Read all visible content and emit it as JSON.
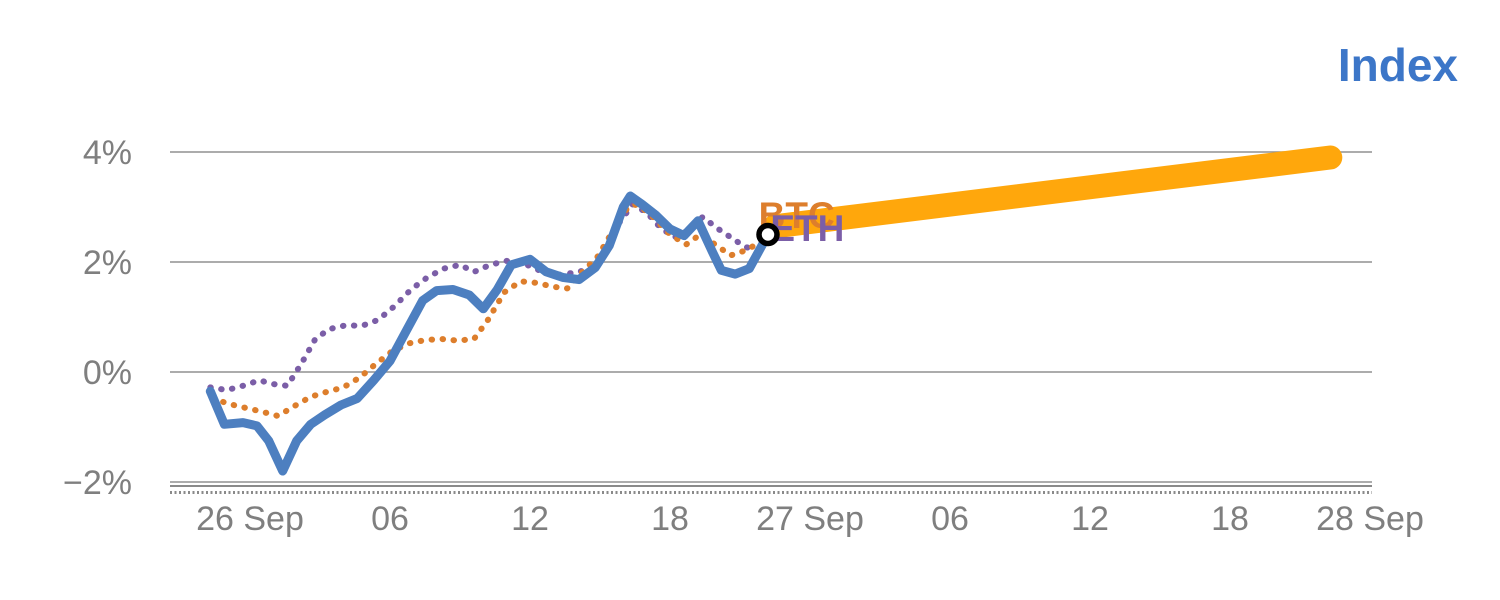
{
  "title": "Index",
  "colors": {
    "title": "#3c76c8",
    "axis_text": "#7f7f7f",
    "grid": "#909090",
    "axis_line": "#8a8a8a",
    "marker_ring": "#000000",
    "marker_fill": "#ffffff"
  },
  "chart_data": {
    "type": "line",
    "title": "Index",
    "x_axis": {
      "unit": "hours from 26 Sep 00:00",
      "range": [
        -2.5,
        48.5
      ],
      "ticks": [
        {
          "t": 0,
          "label": "26 Sep"
        },
        {
          "t": 6,
          "label": "06"
        },
        {
          "t": 12,
          "label": "12"
        },
        {
          "t": 18,
          "label": "18"
        },
        {
          "t": 24,
          "label": "27 Sep"
        },
        {
          "t": 30,
          "label": "06"
        },
        {
          "t": 36,
          "label": "12"
        },
        {
          "t": 42,
          "label": "18"
        },
        {
          "t": 48,
          "label": "28 Sep"
        }
      ]
    },
    "y_axis": {
      "unit": "percent change",
      "range": [
        -2.3,
        4.6
      ],
      "grid": true,
      "ticks": [
        {
          "v": 4,
          "label": "4%"
        },
        {
          "v": 2,
          "label": "2%"
        },
        {
          "v": 0,
          "label": "0%"
        },
        {
          "v": -2,
          "label": "−2%"
        }
      ]
    },
    "series": [
      {
        "name": "eth",
        "color": "#7b5ea7",
        "style": "dotted",
        "width": 6,
        "points": [
          [
            -1.7,
            -0.28
          ],
          [
            -1.0,
            -0.33
          ],
          [
            -0.3,
            -0.25
          ],
          [
            0.4,
            -0.15
          ],
          [
            1.0,
            -0.22
          ],
          [
            1.6,
            -0.25
          ],
          [
            2.2,
            0.15
          ],
          [
            2.8,
            0.6
          ],
          [
            3.4,
            0.78
          ],
          [
            4.1,
            0.85
          ],
          [
            4.8,
            0.84
          ],
          [
            5.5,
            0.95
          ],
          [
            6.2,
            1.2
          ],
          [
            6.9,
            1.5
          ],
          [
            7.6,
            1.72
          ],
          [
            8.3,
            1.88
          ],
          [
            9.0,
            1.95
          ],
          [
            9.6,
            1.82
          ],
          [
            10.3,
            1.95
          ],
          [
            11.0,
            2.02
          ],
          [
            11.7,
            1.98
          ],
          [
            12.4,
            1.85
          ],
          [
            13.1,
            1.76
          ],
          [
            13.8,
            1.8
          ],
          [
            14.5,
            1.86
          ],
          [
            15.2,
            2.1
          ],
          [
            15.8,
            2.7
          ],
          [
            16.4,
            3.05
          ],
          [
            17.0,
            2.9
          ],
          [
            17.6,
            2.62
          ],
          [
            18.2,
            2.45
          ],
          [
            18.8,
            2.58
          ],
          [
            19.4,
            2.82
          ],
          [
            20.0,
            2.62
          ],
          [
            20.6,
            2.45
          ],
          [
            21.2,
            2.28
          ],
          [
            21.9,
            2.18
          ]
        ]
      },
      {
        "name": "btc",
        "color": "#dd7e2c",
        "style": "dotted",
        "width": 6,
        "points": [
          [
            -1.6,
            -0.48
          ],
          [
            -0.9,
            -0.58
          ],
          [
            -0.2,
            -0.65
          ],
          [
            0.5,
            -0.72
          ],
          [
            1.2,
            -0.8
          ],
          [
            1.9,
            -0.62
          ],
          [
            2.6,
            -0.45
          ],
          [
            3.3,
            -0.36
          ],
          [
            4.0,
            -0.28
          ],
          [
            4.7,
            -0.1
          ],
          [
            5.4,
            0.15
          ],
          [
            6.1,
            0.38
          ],
          [
            6.8,
            0.52
          ],
          [
            7.5,
            0.58
          ],
          [
            8.2,
            0.6
          ],
          [
            8.9,
            0.57
          ],
          [
            9.6,
            0.6
          ],
          [
            10.2,
            0.95
          ],
          [
            10.9,
            1.45
          ],
          [
            11.6,
            1.65
          ],
          [
            12.3,
            1.62
          ],
          [
            13.0,
            1.55
          ],
          [
            13.6,
            1.52
          ],
          [
            14.2,
            1.8
          ],
          [
            14.9,
            2.1
          ],
          [
            15.6,
            2.6
          ],
          [
            16.2,
            3.0
          ],
          [
            16.6,
            3.05
          ],
          [
            17.2,
            2.85
          ],
          [
            18.0,
            2.5
          ],
          [
            18.7,
            2.32
          ],
          [
            19.3,
            2.5
          ],
          [
            20.0,
            2.3
          ],
          [
            20.6,
            2.12
          ],
          [
            21.3,
            2.22
          ],
          [
            22.0,
            2.4
          ]
        ]
      },
      {
        "name": "index",
        "color": "#4d7fc0",
        "style": "solid",
        "width": 9,
        "points": [
          [
            -1.7,
            -0.35
          ],
          [
            -1.1,
            -0.95
          ],
          [
            -0.3,
            -0.92
          ],
          [
            0.3,
            -0.98
          ],
          [
            0.8,
            -1.25
          ],
          [
            1.4,
            -1.8
          ],
          [
            2.0,
            -1.25
          ],
          [
            2.6,
            -0.95
          ],
          [
            3.2,
            -0.78
          ],
          [
            3.9,
            -0.6
          ],
          [
            4.6,
            -0.48
          ],
          [
            5.3,
            -0.15
          ],
          [
            6.0,
            0.2
          ],
          [
            6.7,
            0.75
          ],
          [
            7.4,
            1.3
          ],
          [
            8.0,
            1.48
          ],
          [
            8.7,
            1.5
          ],
          [
            9.4,
            1.4
          ],
          [
            10.0,
            1.15
          ],
          [
            10.6,
            1.5
          ],
          [
            11.2,
            1.95
          ],
          [
            12.0,
            2.05
          ],
          [
            12.7,
            1.82
          ],
          [
            13.4,
            1.72
          ],
          [
            14.1,
            1.68
          ],
          [
            14.8,
            1.9
          ],
          [
            15.4,
            2.3
          ],
          [
            16.0,
            3.0
          ],
          [
            16.3,
            3.2
          ],
          [
            16.8,
            3.05
          ],
          [
            17.4,
            2.85
          ],
          [
            18.0,
            2.6
          ],
          [
            18.6,
            2.48
          ],
          [
            19.2,
            2.75
          ],
          [
            19.8,
            2.2
          ],
          [
            20.2,
            1.85
          ],
          [
            20.8,
            1.78
          ],
          [
            21.4,
            1.88
          ],
          [
            22.2,
            2.5
          ]
        ]
      },
      {
        "name": "forecast",
        "color": "#ffa70c",
        "style": "solid",
        "width": 24,
        "points": [
          [
            22.5,
            2.65
          ],
          [
            46.3,
            3.9
          ]
        ]
      }
    ],
    "marker": {
      "t": 22.2,
      "value": 2.5
    },
    "annotations": [
      {
        "text": "BTC",
        "color": "#dd7e2c",
        "t": 21.8,
        "value": 2.62
      },
      {
        "text": "ETH",
        "color": "#7b5ea7",
        "t": 22.3,
        "value": 2.38
      }
    ]
  }
}
